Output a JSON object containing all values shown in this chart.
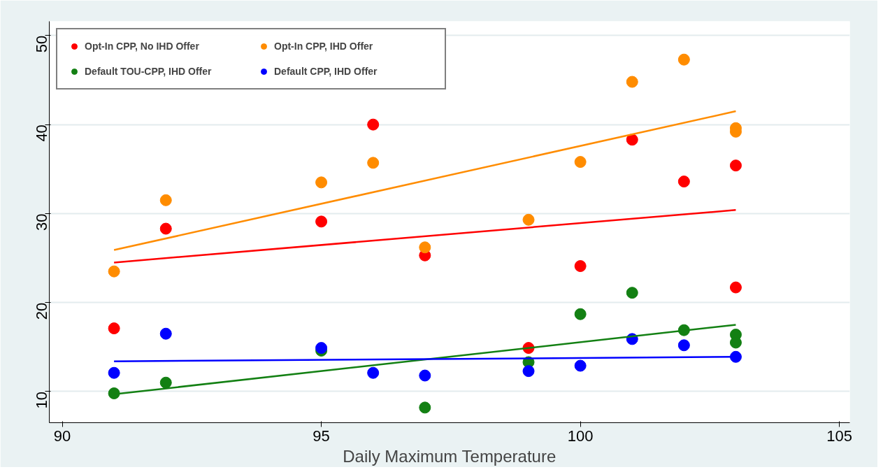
{
  "chart_data": {
    "type": "scatter",
    "xlabel": "Daily Maximum Temperature",
    "xlim": [
      89.75,
      105.2
    ],
    "ylim": [
      6.5,
      51.6
    ],
    "xticks": [
      90,
      95,
      100,
      105
    ],
    "yticks": [
      10,
      20,
      30,
      40,
      50
    ],
    "grid": "y",
    "legend": "top left",
    "marker": "circle",
    "series": [
      {
        "name": "Opt-In CPP, No IHD Offer",
        "color": "#ff0000",
        "x": [
          91,
          92,
          95,
          96,
          97,
          99,
          100,
          101,
          102,
          103,
          103
        ],
        "values": [
          17.1,
          28.3,
          29.1,
          40,
          25.3,
          14.9,
          24.1,
          38.3,
          33.6,
          35.4,
          21.7
        ]
      },
      {
        "name": "Opt-In CPP, IHD Offer",
        "color": "#ff8c00",
        "x": [
          91,
          92,
          95,
          96,
          97,
          99,
          100,
          101,
          102,
          103,
          103
        ],
        "values": [
          23.5,
          31.5,
          33.5,
          35.7,
          26.2,
          29.3,
          35.8,
          44.8,
          47.3,
          39.6,
          39.2
        ]
      },
      {
        "name": "Default TOU-CPP, IHD Offer",
        "color": "#138013",
        "x": [
          91,
          92,
          95,
          97,
          99,
          100,
          101,
          102,
          103,
          103
        ],
        "values": [
          9.8,
          11.0,
          14.6,
          8.2,
          13.3,
          18.7,
          21.1,
          16.9,
          16.4,
          15.5
        ]
      },
      {
        "name": "Default CPP, IHD Offer",
        "color": "#0000ff",
        "x": [
          91,
          92,
          95,
          96,
          97,
          99,
          100,
          101,
          102,
          103
        ],
        "values": [
          12.1,
          16.5,
          14.9,
          12.1,
          11.8,
          12.3,
          12.9,
          15.9,
          15.2,
          13.9
        ]
      },
      {
        "type": "line",
        "marker": "none",
        "color": "#ff0000",
        "x": [
          91,
          103
        ],
        "values": [
          24.5,
          30.4
        ]
      },
      {
        "type": "line",
        "marker": "none",
        "color": "#ff8c00",
        "x": [
          91,
          103
        ],
        "values": [
          25.9,
          41.5
        ]
      },
      {
        "type": "line",
        "marker": "none",
        "color": "#138013",
        "x": [
          91,
          103
        ],
        "values": [
          9.7,
          17.5
        ]
      },
      {
        "type": "line",
        "marker": "none",
        "color": "#0000ff",
        "x": [
          91,
          103
        ],
        "values": [
          13.4,
          13.9
        ]
      }
    ]
  }
}
